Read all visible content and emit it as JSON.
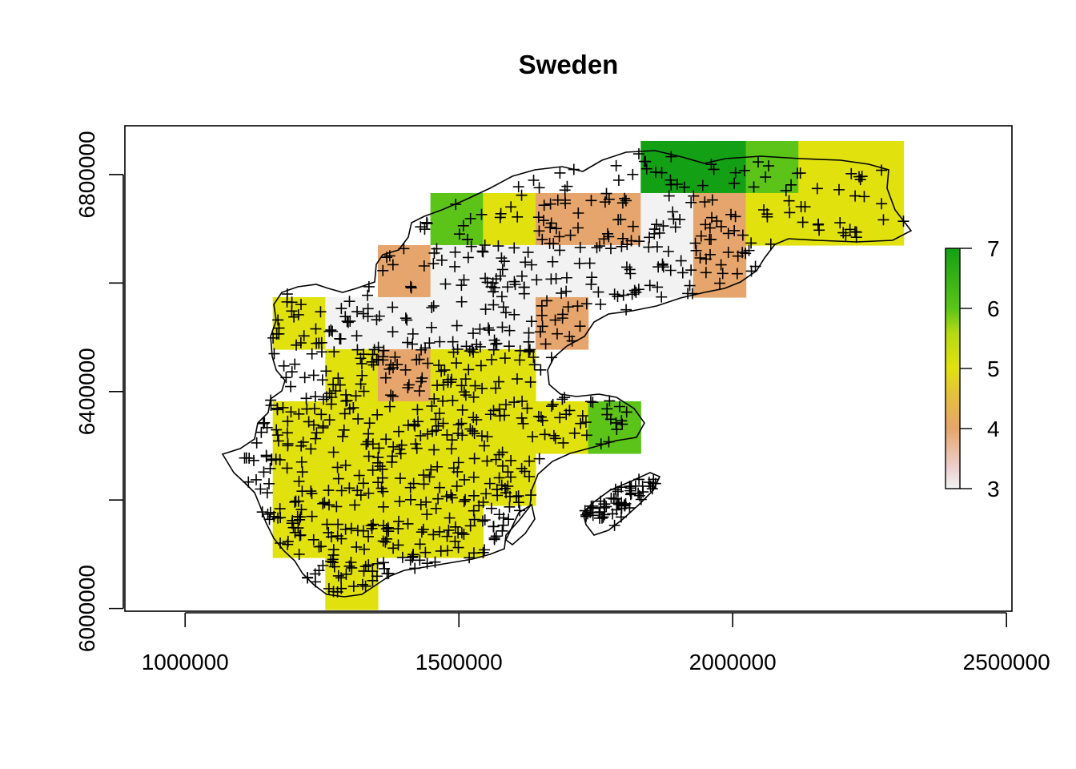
{
  "chart_data": {
    "type": "heatmap",
    "title": "Sweden",
    "xlabel": "",
    "ylabel": "",
    "xlim": [
      890000,
      2510000
    ],
    "ylim": [
      5995000,
      6890000
    ],
    "x_ticks": [
      1000000,
      1500000,
      2000000,
      2500000
    ],
    "y_ticks": [
      6000000,
      6200000,
      6400000,
      6600000,
      6800000
    ],
    "x_tick_labels": [
      "1000000",
      "1500000",
      "2000000",
      "2500000"
    ],
    "y_tick_labels": [
      "6000000",
      "6400000",
      "6800000"
    ],
    "cell_size": 96000,
    "grid_origin": [
      1160000,
      5998000
    ],
    "cells": [
      {
        "col": 7,
        "row": 8,
        "value": 7
      },
      {
        "col": 8,
        "row": 8,
        "value": 7
      },
      {
        "col": 9,
        "row": 8,
        "value": 6
      },
      {
        "col": 10,
        "row": 8,
        "value": 5
      },
      {
        "col": 11,
        "row": 8,
        "value": 5
      },
      {
        "col": 3,
        "row": 7,
        "value": 6
      },
      {
        "col": 4,
        "row": 7,
        "value": 5
      },
      {
        "col": 5,
        "row": 7,
        "value": 4
      },
      {
        "col": 6,
        "row": 7,
        "value": 4
      },
      {
        "col": 7,
        "row": 7,
        "value": 3
      },
      {
        "col": 8,
        "row": 7,
        "value": 4
      },
      {
        "col": 9,
        "row": 7,
        "value": 5
      },
      {
        "col": 10,
        "row": 7,
        "value": 5
      },
      {
        "col": 11,
        "row": 7,
        "value": 5
      },
      {
        "col": 2,
        "row": 6,
        "value": 4
      },
      {
        "col": 3,
        "row": 6,
        "value": 3
      },
      {
        "col": 4,
        "row": 6,
        "value": 3
      },
      {
        "col": 5,
        "row": 6,
        "value": 3
      },
      {
        "col": 6,
        "row": 6,
        "value": 3
      },
      {
        "col": 7,
        "row": 6,
        "value": 3
      },
      {
        "col": 8,
        "row": 6,
        "value": 4
      },
      {
        "col": 0,
        "row": 5,
        "value": 5
      },
      {
        "col": 1,
        "row": 5,
        "value": 3
      },
      {
        "col": 2,
        "row": 5,
        "value": 3
      },
      {
        "col": 3,
        "row": 5,
        "value": 3
      },
      {
        "col": 4,
        "row": 5,
        "value": 3
      },
      {
        "col": 5,
        "row": 5,
        "value": 4
      },
      {
        "col": 1,
        "row": 4,
        "value": 5
      },
      {
        "col": 2,
        "row": 4,
        "value": 4
      },
      {
        "col": 3,
        "row": 4,
        "value": 5
      },
      {
        "col": 4,
        "row": 4,
        "value": 5
      },
      {
        "col": 0,
        "row": 3,
        "value": 5
      },
      {
        "col": 1,
        "row": 3,
        "value": 5
      },
      {
        "col": 2,
        "row": 3,
        "value": 5
      },
      {
        "col": 3,
        "row": 3,
        "value": 5
      },
      {
        "col": 4,
        "row": 3,
        "value": 5
      },
      {
        "col": 5,
        "row": 3,
        "value": 5
      },
      {
        "col": 6,
        "row": 3,
        "value": 6
      },
      {
        "col": 0,
        "row": 2,
        "value": 5
      },
      {
        "col": 1,
        "row": 2,
        "value": 5
      },
      {
        "col": 2,
        "row": 2,
        "value": 5
      },
      {
        "col": 3,
        "row": 2,
        "value": 5
      },
      {
        "col": 4,
        "row": 2,
        "value": 5
      },
      {
        "col": 0,
        "row": 1,
        "value": 5
      },
      {
        "col": 1,
        "row": 1,
        "value": 5
      },
      {
        "col": 2,
        "row": 1,
        "value": 5
      },
      {
        "col": 3,
        "row": 1,
        "value": 5
      },
      {
        "col": 1,
        "row": 0,
        "value": 5
      }
    ],
    "legend": {
      "placement": "right",
      "min": 3,
      "max": 7,
      "ticks": [
        3,
        4,
        5,
        6,
        7
      ],
      "tick_labels": [
        "3",
        "4",
        "5",
        "6",
        "7"
      ]
    },
    "colors": {
      "3": "#f2f2f2",
      "4": "#e6a56c",
      "5": "#e1e10e",
      "6": "#5cc419",
      "7": "#14a014"
    },
    "outline_color": "#000000",
    "point_marker": "+",
    "point_count": 900,
    "grid": false
  }
}
